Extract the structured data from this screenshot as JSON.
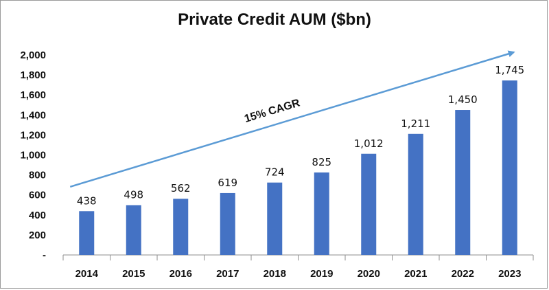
{
  "chart_data": {
    "type": "bar",
    "title": "Private Credit AUM ($bn)",
    "xlabel": "",
    "ylabel": "",
    "categories": [
      "2014",
      "2015",
      "2016",
      "2017",
      "2018",
      "2019",
      "2020",
      "2021",
      "2022",
      "2023"
    ],
    "values": [
      438,
      498,
      562,
      619,
      724,
      825,
      1012,
      1211,
      1450,
      1745
    ],
    "data_labels": [
      "438",
      "498",
      "562",
      "619",
      "724",
      "825",
      "1,012",
      "1,211",
      "1,450",
      "1,745"
    ],
    "ylim": [
      0,
      2000
    ],
    "yticks": [
      0,
      200,
      400,
      600,
      800,
      1000,
      1200,
      1400,
      1600,
      1800,
      2000
    ],
    "ytick_labels": [
      "-",
      "200",
      "400",
      "600",
      "800",
      "1,000",
      "1,200",
      "1,400",
      "1,600",
      "1,800",
      "2,000"
    ],
    "grid": false,
    "legend": "none",
    "bar_color": "#4472C4",
    "annotation": {
      "text": "15% CAGR",
      "color": "#5B9BD5",
      "from": {
        "x": "2014",
        "y": 730
      },
      "to": {
        "x": "2023",
        "y": 2000
      }
    }
  }
}
